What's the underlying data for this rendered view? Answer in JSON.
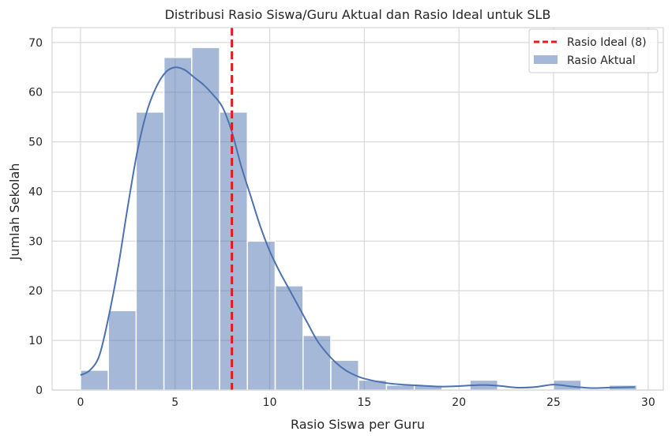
{
  "chart_data": {
    "type": "bar",
    "title": "Distribusi Rasio Siswa/Guru Aktual dan Rasio Ideal untuk SLB",
    "xlabel": "Rasio Siswa per Guru",
    "ylabel": "Jumlah Sekolah",
    "xlim": [
      -1.5,
      30.8
    ],
    "ylim": [
      0,
      73
    ],
    "xticks": [
      0,
      5,
      10,
      15,
      20,
      25,
      30
    ],
    "yticks": [
      0,
      10,
      20,
      30,
      40,
      50,
      60,
      70
    ],
    "grid": true,
    "legend_position": "top-right",
    "bin_edges": [
      0.0,
      1.47,
      2.94,
      4.41,
      5.88,
      7.35,
      8.82,
      10.29,
      11.76,
      13.23,
      14.7,
      16.17,
      17.64,
      19.11,
      20.58,
      22.05,
      23.52,
      24.99,
      26.46,
      27.93,
      29.4
    ],
    "series": [
      {
        "name": "Rasio Aktual",
        "kind": "histogram",
        "color": "#4C72B0",
        "values": [
          4,
          16,
          56,
          67,
          69,
          56,
          30,
          21,
          11,
          6,
          2,
          1,
          1,
          0,
          2,
          0,
          0,
          2,
          0,
          1
        ]
      },
      {
        "kind": "kde",
        "color": "#4C72B0",
        "x": [
          0,
          0.5,
          1,
          1.5,
          2,
          2.5,
          3,
          3.5,
          4,
          4.5,
          5,
          5.5,
          6,
          6.5,
          7,
          7.5,
          8,
          8.5,
          9,
          9.5,
          10,
          10.5,
          11,
          11.5,
          12,
          12.5,
          13,
          13.5,
          14,
          14.5,
          15,
          16,
          17,
          18,
          19,
          20,
          21,
          22,
          23,
          24,
          25,
          26,
          27,
          28,
          29.3
        ],
        "y": [
          3,
          4,
          7,
          15,
          25,
          37,
          48,
          56,
          61,
          64,
          65,
          64.5,
          63,
          61.5,
          59.5,
          57,
          52,
          45,
          39,
          33,
          28,
          24,
          20.5,
          17,
          13.5,
          10,
          7.5,
          5.5,
          4,
          3,
          2.3,
          1.5,
          1.1,
          0.9,
          0.7,
          0.8,
          1.0,
          0.9,
          0.5,
          0.6,
          1.1,
          0.7,
          0.4,
          0.5,
          0.6
        ]
      }
    ],
    "reference_line": {
      "name": "Rasio Ideal (8)",
      "x": 8,
      "color": "#e41a1c",
      "style": "dashed"
    }
  }
}
